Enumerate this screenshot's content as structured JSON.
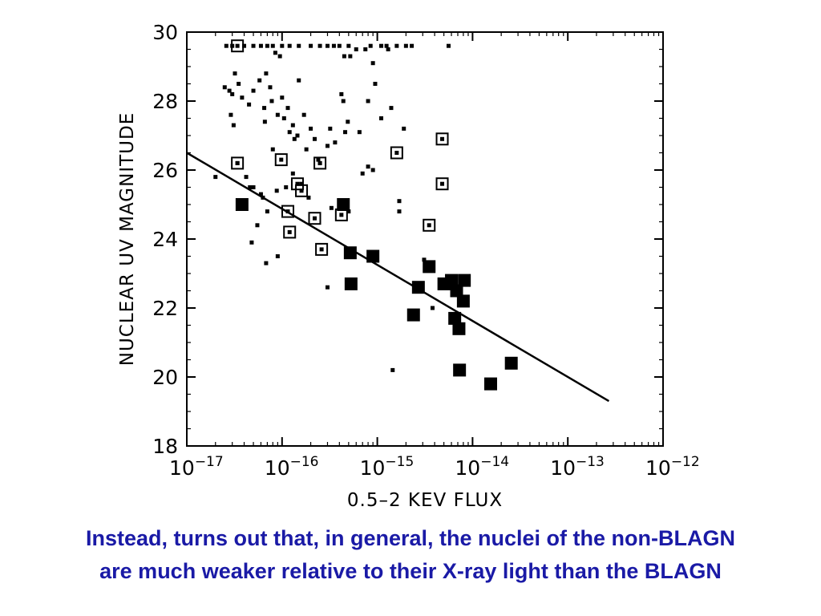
{
  "caption": {
    "line1": "Instead, turns out that, in general, the nuclei of the non-BLAGN",
    "line2": "are much weaker relative to their X-ray light than the BLAGN"
  },
  "colors": {
    "caption": "#1a1aa6",
    "marks": "#000000"
  },
  "chart_data": {
    "type": "scatter",
    "title": "",
    "xlabel": "0.5–2 KEV FLUX",
    "ylabel": "NUCLEAR UV MAGNITUDE",
    "x_scale": "log",
    "xlim": [
      1e-17,
      1e-12
    ],
    "ylim": [
      18,
      30
    ],
    "x_ticks": [
      {
        "value": 1e-17,
        "base": "10",
        "exp": "−17"
      },
      {
        "value": 1e-16,
        "base": "10",
        "exp": "−16"
      },
      {
        "value": 1e-15,
        "base": "10",
        "exp": "−15"
      },
      {
        "value": 1e-14,
        "base": "10",
        "exp": "−14"
      },
      {
        "value": 1e-13,
        "base": "10",
        "exp": "−13"
      },
      {
        "value": 1e-12,
        "base": "10",
        "exp": "−12"
      }
    ],
    "y_ticks": [
      "18",
      "20",
      "22",
      "24",
      "26",
      "28",
      "30"
    ],
    "grid": false,
    "series": [
      {
        "marker": "small-filled-square",
        "points": [
          [
            2.5e-17,
            28.4
          ],
          [
            2.8e-17,
            28.3
          ],
          [
            3.2e-17,
            28.8
          ],
          [
            3.5e-17,
            28.5
          ],
          [
            2.9e-17,
            27.6
          ],
          [
            3.1e-17,
            27.3
          ],
          [
            3.8e-17,
            28.1
          ],
          [
            4.5e-17,
            27.9
          ],
          [
            5e-17,
            28.3
          ],
          [
            5.8e-17,
            28.6
          ],
          [
            6.5e-17,
            27.8
          ],
          [
            7.5e-17,
            28.4
          ],
          [
            8.5e-17,
            29.4
          ],
          [
            9.5e-17,
            29.3
          ],
          [
            1e-16,
            28.1
          ],
          [
            1.15e-16,
            27.8
          ],
          [
            1.3e-16,
            27.3
          ],
          [
            1.5e-16,
            28.6
          ],
          [
            1.7e-16,
            27.6
          ],
          [
            2e-16,
            27.2
          ],
          [
            2.2e-16,
            26.9
          ],
          [
            6.8e-17,
            28.8
          ],
          [
            7.8e-17,
            28.0
          ],
          [
            9e-17,
            27.6
          ],
          [
            1.05e-16,
            27.5
          ],
          [
            1.2e-16,
            27.1
          ],
          [
            1.35e-16,
            26.9
          ],
          [
            1.45e-16,
            27.0
          ],
          [
            1.8e-16,
            26.6
          ],
          [
            2.4e-16,
            26.3
          ],
          [
            3e-16,
            26.7
          ],
          [
            3.2e-16,
            27.2
          ],
          [
            3.6e-16,
            26.8
          ],
          [
            4.6e-16,
            27.1
          ],
          [
            4.9e-16,
            27.4
          ],
          [
            4.2e-16,
            28.2
          ],
          [
            4.4e-16,
            28.0
          ],
          [
            8e-16,
            28.0
          ],
          [
            9e-16,
            29.1
          ],
          [
            9.5e-16,
            28.5
          ],
          [
            6.5e-16,
            27.1
          ],
          [
            1.1e-15,
            27.5
          ],
          [
            1.4e-15,
            27.8
          ],
          [
            1.9e-15,
            27.2
          ],
          [
            8e-16,
            26.1
          ],
          [
            9e-16,
            26.0
          ],
          [
            7e-16,
            25.9
          ],
          [
            4.2e-17,
            25.8
          ],
          [
            5e-17,
            25.5
          ],
          [
            6e-17,
            25.3
          ],
          [
            7e-17,
            24.8
          ],
          [
            3.5e-17,
            24.9
          ],
          [
            5.5e-17,
            24.4
          ],
          [
            4.8e-17,
            23.9
          ],
          [
            6.8e-17,
            23.3
          ],
          [
            9e-17,
            23.5
          ],
          [
            3e-16,
            22.6
          ],
          [
            1.7e-15,
            25.1
          ],
          [
            1.7e-15,
            24.8
          ],
          [
            3.1e-15,
            23.4
          ],
          [
            1.45e-15,
            20.2
          ],
          [
            3.8e-15,
            22.0
          ],
          [
            2e-17,
            25.8
          ],
          [
            3.4e-17,
            26.2
          ],
          [
            4.6e-17,
            25.5
          ],
          [
            6.3e-17,
            25.2
          ],
          [
            8.8e-17,
            25.4
          ],
          [
            1.3e-16,
            25.9
          ],
          [
            1.6e-16,
            25.6
          ],
          [
            1.9e-16,
            25.2
          ],
          [
            2.5e-16,
            26.2
          ],
          [
            3.3e-16,
            24.9
          ],
          [
            4e-16,
            25.0
          ],
          [
            5e-16,
            24.8
          ],
          [
            1.1e-16,
            25.5
          ],
          [
            8e-17,
            26.6
          ],
          [
            6.6e-17,
            27.4
          ],
          [
            3e-17,
            28.2
          ],
          [
            5.2e-16,
            29.3
          ],
          [
            6e-16,
            29.5
          ],
          [
            8.5e-16,
            29.6
          ],
          [
            1.25e-15,
            29.6
          ],
          [
            1.6e-15,
            29.6
          ],
          [
            2e-15,
            29.6
          ],
          [
            2.3e-15,
            29.6
          ],
          [
            5.6e-15,
            29.6
          ],
          [
            1.1e-15,
            29.6
          ],
          [
            1.3e-15,
            29.5
          ],
          [
            7.5e-16,
            29.5
          ],
          [
            4.5e-16,
            29.3
          ],
          [
            2.6e-17,
            29.6
          ],
          [
            3e-17,
            29.6
          ],
          [
            4e-17,
            29.6
          ],
          [
            5e-17,
            29.6
          ],
          [
            6e-17,
            29.6
          ],
          [
            7e-17,
            29.6
          ],
          [
            8e-17,
            29.6
          ],
          [
            1e-16,
            29.6
          ],
          [
            1.2e-16,
            29.6
          ],
          [
            1.5e-16,
            29.6
          ],
          [
            2e-16,
            29.6
          ],
          [
            2.5e-16,
            29.6
          ],
          [
            3e-16,
            29.6
          ],
          [
            3.5e-16,
            29.6
          ],
          [
            4e-16,
            29.6
          ],
          [
            5e-16,
            29.6
          ]
        ]
      },
      {
        "marker": "open-square",
        "points": [
          [
            3.4e-17,
            29.6
          ],
          [
            3.4e-17,
            26.2
          ],
          [
            9.8e-17,
            26.3
          ],
          [
            2.5e-16,
            26.2
          ],
          [
            1.45e-16,
            25.6
          ],
          [
            1.6e-16,
            25.4
          ],
          [
            1.15e-16,
            24.8
          ],
          [
            1.2e-16,
            24.2
          ],
          [
            2.2e-16,
            24.6
          ],
          [
            4.2e-16,
            24.7
          ],
          [
            2.6e-16,
            23.7
          ],
          [
            1.6e-15,
            26.5
          ],
          [
            4.8e-15,
            26.9
          ],
          [
            4.8e-15,
            25.6
          ],
          [
            3.5e-15,
            24.4
          ]
        ]
      },
      {
        "marker": "large-filled-square",
        "points": [
          [
            3.8e-17,
            25.0
          ],
          [
            4.4e-16,
            25.0
          ],
          [
            5.2e-16,
            23.6
          ],
          [
            5.3e-16,
            22.7
          ],
          [
            9e-16,
            23.5
          ],
          [
            3.5e-15,
            23.2
          ],
          [
            2.7e-15,
            22.6
          ],
          [
            5e-15,
            22.7
          ],
          [
            6e-15,
            22.8
          ],
          [
            6.8e-15,
            22.5
          ],
          [
            8.2e-15,
            22.8
          ],
          [
            8e-15,
            22.2
          ],
          [
            6.5e-15,
            21.7
          ],
          [
            7.2e-15,
            21.4
          ],
          [
            2.4e-15,
            21.8
          ],
          [
            7.3e-15,
            20.2
          ],
          [
            1.55e-14,
            19.8
          ],
          [
            2.55e-14,
            20.4
          ]
        ]
      }
    ],
    "fit_line": {
      "x": [
        1e-17,
        2.7e-13
      ],
      "y": [
        26.5,
        19.3
      ]
    }
  }
}
